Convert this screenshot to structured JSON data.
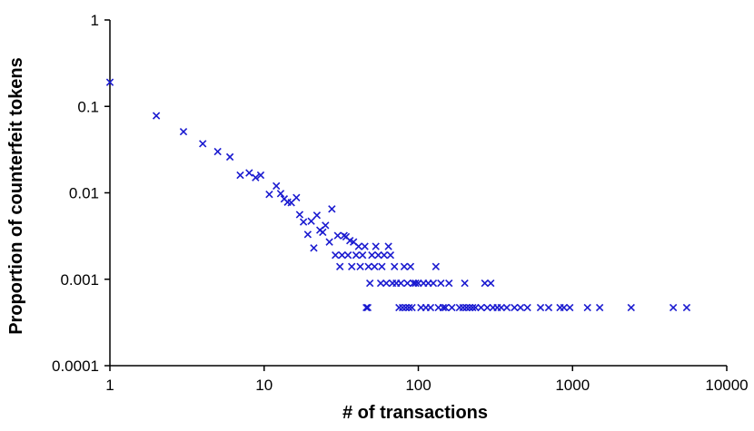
{
  "chart_data": {
    "type": "scatter",
    "title": "",
    "xlabel": "# of transactions",
    "ylabel": "Proportion of counterfeit tokens",
    "x_scale": "log",
    "y_scale": "log",
    "xlim": [
      1,
      10000
    ],
    "ylim": [
      0.0001,
      1
    ],
    "grid": false,
    "legend": "none",
    "marker": "x",
    "marker_color": "#1a1ad0",
    "x_ticks": [
      1,
      10,
      100,
      1000,
      10000
    ],
    "x_tick_labels": [
      "1",
      "10",
      "100",
      "1000",
      "10000"
    ],
    "y_ticks": [
      0.0001,
      0.001,
      0.01,
      0.1,
      1
    ],
    "y_tick_labels": [
      "0.0001",
      "0.001",
      "0.01",
      "0.1",
      "1"
    ],
    "points": [
      [
        1,
        0.19
      ],
      [
        2,
        0.078
      ],
      [
        3,
        0.051
      ],
      [
        4,
        0.037
      ],
      [
        5,
        0.03
      ],
      [
        6,
        0.026
      ],
      [
        7,
        0.016
      ],
      [
        8,
        0.017
      ],
      [
        8.8,
        0.015
      ],
      [
        9.5,
        0.016
      ],
      [
        10.8,
        0.0096
      ],
      [
        12,
        0.012
      ],
      [
        12.8,
        0.0098
      ],
      [
        13.5,
        0.0085
      ],
      [
        14.2,
        0.0078
      ],
      [
        15,
        0.0077
      ],
      [
        16.2,
        0.0088
      ],
      [
        17,
        0.0056
      ],
      [
        18,
        0.0046
      ],
      [
        19.2,
        0.0033
      ],
      [
        20.2,
        0.0047
      ],
      [
        21,
        0.0023
      ],
      [
        22,
        0.0055
      ],
      [
        23,
        0.0037
      ],
      [
        24,
        0.0035
      ],
      [
        25,
        0.0042
      ],
      [
        26.5,
        0.0027
      ],
      [
        27.5,
        0.0065
      ],
      [
        29,
        0.0019
      ],
      [
        30,
        0.0032
      ],
      [
        31,
        0.0014
      ],
      [
        32,
        0.0019
      ],
      [
        33,
        0.0032
      ],
      [
        34,
        0.0031
      ],
      [
        35,
        0.0019
      ],
      [
        36,
        0.0028
      ],
      [
        37,
        0.0014
      ],
      [
        38,
        0.0027
      ],
      [
        39.5,
        0.0019
      ],
      [
        41,
        0.0024
      ],
      [
        42,
        0.0014
      ],
      [
        43.5,
        0.0019
      ],
      [
        45,
        0.0024
      ],
      [
        46,
        0.00047
      ],
      [
        47,
        0.00047
      ],
      [
        47.5,
        0.0014
      ],
      [
        48.5,
        0.0009
      ],
      [
        50,
        0.0019
      ],
      [
        52,
        0.0014
      ],
      [
        53,
        0.0024
      ],
      [
        55,
        0.0019
      ],
      [
        57,
        0.0009
      ],
      [
        58,
        0.0014
      ],
      [
        60,
        0.0019
      ],
      [
        62,
        0.0009
      ],
      [
        64,
        0.0024
      ],
      [
        66,
        0.0019
      ],
      [
        68,
        0.0009
      ],
      [
        70,
        0.0014
      ],
      [
        72,
        0.0009
      ],
      [
        75,
        0.00047
      ],
      [
        77,
        0.0009
      ],
      [
        79,
        0.00047
      ],
      [
        81,
        0.0014
      ],
      [
        83,
        0.00047
      ],
      [
        85,
        0.0009
      ],
      [
        87,
        0.00047
      ],
      [
        89,
        0.0014
      ],
      [
        91,
        0.00047
      ],
      [
        93,
        0.0009
      ],
      [
        96,
        0.0009
      ],
      [
        100,
        0.0009
      ],
      [
        104,
        0.00047
      ],
      [
        108,
        0.0009
      ],
      [
        112,
        0.00047
      ],
      [
        116,
        0.0009
      ],
      [
        120,
        0.00047
      ],
      [
        125,
        0.0009
      ],
      [
        130,
        0.0014
      ],
      [
        135,
        0.00047
      ],
      [
        140,
        0.0009
      ],
      [
        145,
        0.00047
      ],
      [
        150,
        0.00047
      ],
      [
        158,
        0.0009
      ],
      [
        165,
        0.00047
      ],
      [
        185,
        0.00047
      ],
      [
        195,
        0.00047
      ],
      [
        200,
        0.0009
      ],
      [
        205,
        0.00047
      ],
      [
        215,
        0.00047
      ],
      [
        225,
        0.00047
      ],
      [
        235,
        0.00047
      ],
      [
        255,
        0.00047
      ],
      [
        270,
        0.0009
      ],
      [
        280,
        0.00047
      ],
      [
        295,
        0.0009
      ],
      [
        305,
        0.00047
      ],
      [
        325,
        0.00047
      ],
      [
        345,
        0.00047
      ],
      [
        375,
        0.00047
      ],
      [
        420,
        0.00047
      ],
      [
        460,
        0.00047
      ],
      [
        510,
        0.00047
      ],
      [
        620,
        0.00047
      ],
      [
        700,
        0.00047
      ],
      [
        830,
        0.00047
      ],
      [
        880,
        0.00047
      ],
      [
        960,
        0.00047
      ],
      [
        1250,
        0.00047
      ],
      [
        1500,
        0.00047
      ],
      [
        2400,
        0.00047
      ],
      [
        4500,
        0.00047
      ],
      [
        5500,
        0.00047
      ]
    ]
  }
}
